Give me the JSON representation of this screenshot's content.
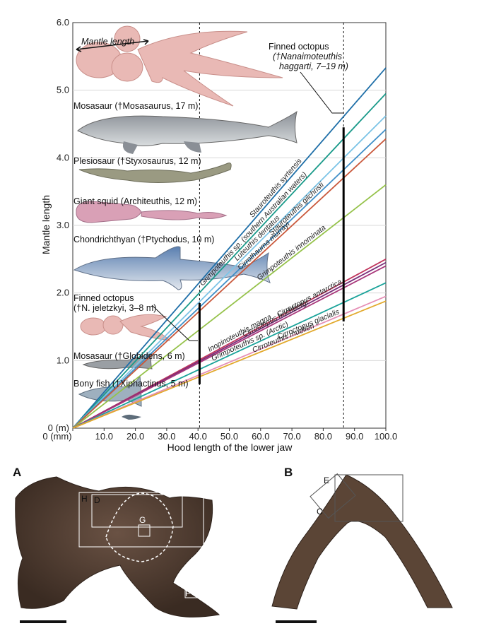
{
  "chart_data": {
    "type": "line",
    "xlabel": "Hood length of the lower jaw",
    "ylabel": "Mantle length",
    "xlim": [
      0,
      100
    ],
    "ylim": [
      0,
      6
    ],
    "x_ticks": [
      "0 (mm)",
      "10.0",
      "20.0",
      "30.0",
      "40.0",
      "50.0",
      "60.0",
      "70.0",
      "80.0",
      "90.0",
      "100.0"
    ],
    "y_ticks": [
      "0 (m)",
      "1.0",
      "2.0",
      "3.0",
      "4.0",
      "5.0",
      "6.0"
    ],
    "vertical_markers": [
      40.5,
      86.5
    ],
    "series": [
      {
        "name": "Stauroteuthis syrtensis",
        "color": "#1f6fa8",
        "values": [
          [
            0,
            0
          ],
          [
            100,
            5.33
          ]
        ]
      },
      {
        "name": "Grimpoteuthis sp. (southern Australian waters)",
        "color": "#1a9a8a",
        "values": [
          [
            0,
            0
          ],
          [
            100,
            4.95
          ]
        ]
      },
      {
        "name": "Luteuthis dentatus",
        "color": "#7cc4e6",
        "values": [
          [
            0,
            0
          ],
          [
            100,
            4.62
          ]
        ]
      },
      {
        "name": "Stauroteuthis gilchristi",
        "color": "#3f8fc8",
        "values": [
          [
            0,
            0
          ],
          [
            100,
            4.42
          ]
        ]
      },
      {
        "name": "Cirrothauma murrayi",
        "color": "#c9573a",
        "values": [
          [
            0,
            0
          ],
          [
            100,
            4.28
          ]
        ]
      },
      {
        "name": "Grimpoteuthis innominata",
        "color": "#95c24a",
        "values": [
          [
            0,
            0
          ],
          [
            100,
            3.6
          ]
        ]
      },
      {
        "name": "Inopinoteuthis magna",
        "color": "#c0355d",
        "values": [
          [
            0,
            0
          ],
          [
            100,
            2.5
          ]
        ]
      },
      {
        "name": "Cirroctopus antarctica",
        "color": "#7a2e7a",
        "values": [
          [
            0,
            0
          ],
          [
            100,
            2.45
          ]
        ]
      },
      {
        "name": "Cirroctopus hochbergi",
        "color": "#a8367a",
        "values": [
          [
            0,
            0
          ],
          [
            100,
            2.4
          ]
        ]
      },
      {
        "name": "Grimpoteuthis sp. (Arctic)",
        "color": "#1aa39a",
        "values": [
          [
            0,
            0
          ],
          [
            100,
            2.15
          ]
        ]
      },
      {
        "name": "Cirroctopus glacialis",
        "color": "#e58fb6",
        "values": [
          [
            0,
            0
          ],
          [
            100,
            1.95
          ]
        ]
      },
      {
        "name": "Cirroteuthis muelleri",
        "color": "#e2a92c",
        "values": [
          [
            0,
            0
          ],
          [
            100,
            1.88
          ]
        ]
      }
    ],
    "range_bars": [
      {
        "x": 40.5,
        "y": [
          0.65,
          1.85
        ]
      },
      {
        "x": 86.5,
        "y": [
          1.58,
          4.45
        ]
      }
    ],
    "animals": [
      {
        "label": "Mosasaur (†Mosasaurus, 17 m)"
      },
      {
        "label": "Plesiosaur (†Styxosaurus, 12 m)"
      },
      {
        "label": "Giant squid (Architeuthis, 12 m)"
      },
      {
        "label": "Chondrichthyan (†Ptychodus, 10 m)"
      },
      {
        "label": "Mosasaur (†Globidens, 6 m)"
      },
      {
        "label": "Bony fish (†Xiphactinus, 5 m)"
      }
    ],
    "annotations": {
      "mantle_length": "Mantle length",
      "finned_octopus_large": [
        "Finned octopus",
        "(†Nanaimoteuthis",
        "haggarti, 7–19 m)"
      ],
      "finned_octopus_small": [
        "Finned octopus",
        "(†N. jeletzkyi, 3–8 m)"
      ]
    }
  },
  "panels": {
    "a_label": "A",
    "b_label": "B",
    "a_boxes": [
      "H",
      "D",
      "G",
      "F"
    ],
    "b_boxes": [
      "E",
      "C"
    ]
  },
  "colors": {
    "jaw": "#4e3a2e",
    "jaw_dark": "#2d211a",
    "octopus": "#e9b9b5",
    "squid": "#d9a0b6"
  }
}
